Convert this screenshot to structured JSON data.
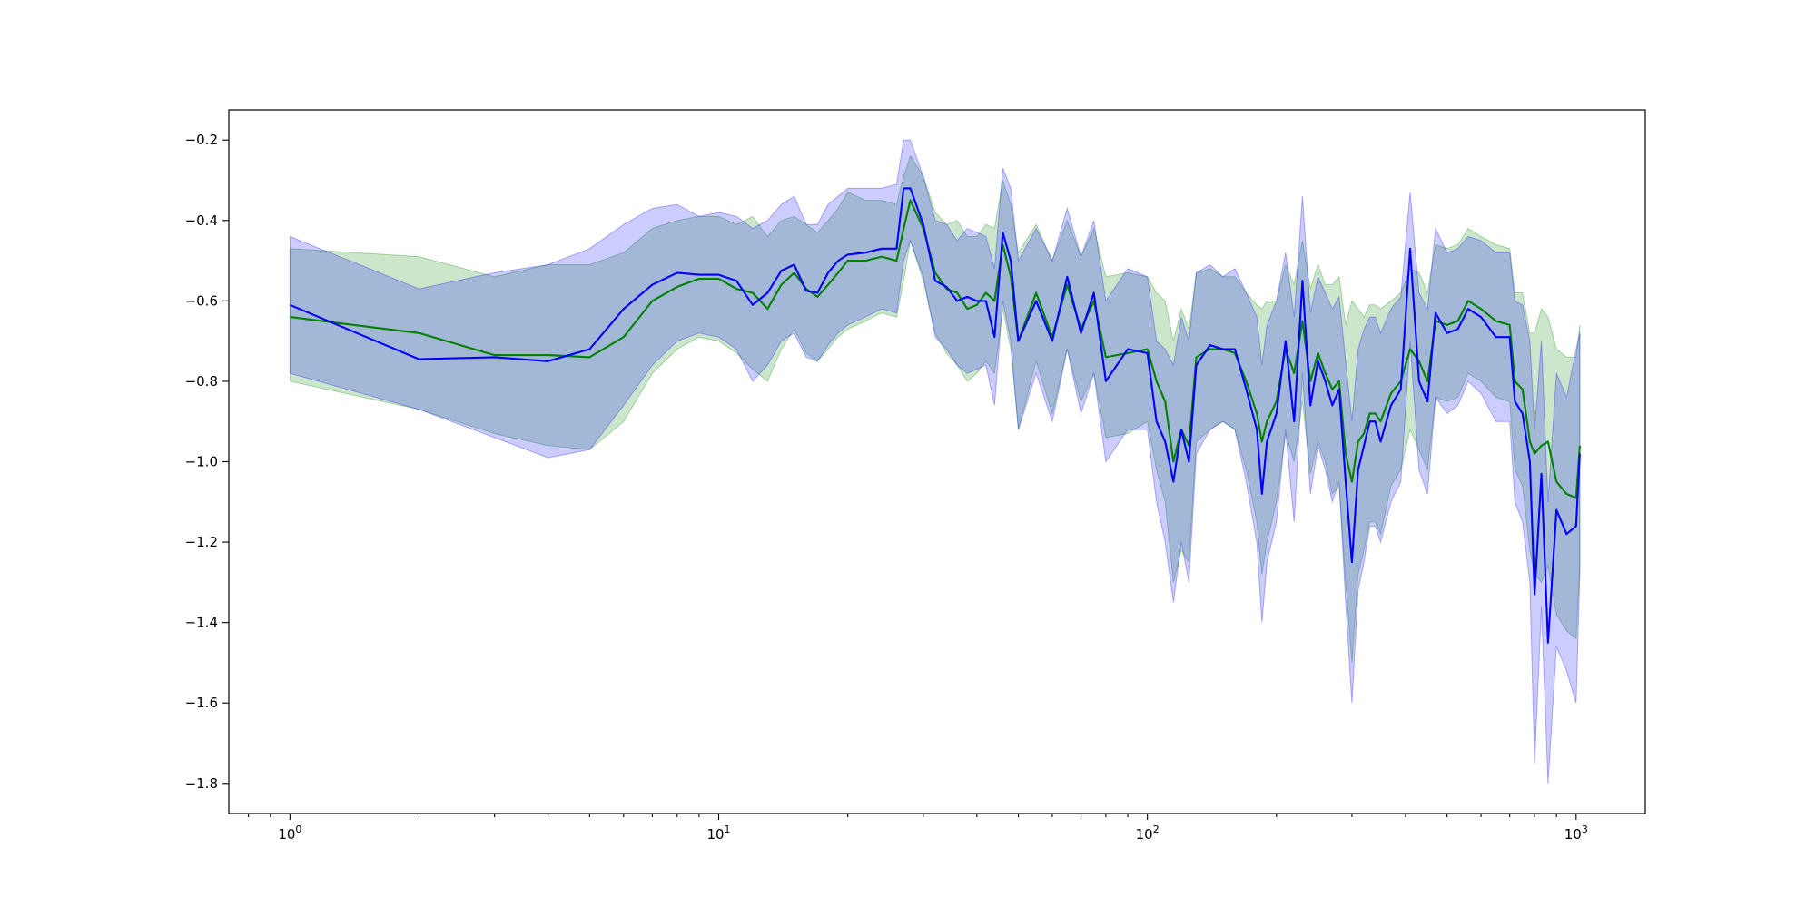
{
  "chart_data": {
    "type": "line",
    "title": "",
    "xlabel": "",
    "ylabel": "",
    "xscale": "log",
    "xlim": [
      0.72,
      1450
    ],
    "ylim": [
      -1.875,
      -0.125
    ],
    "grid": false,
    "legend": "none",
    "x_ticks": [
      1,
      10,
      100,
      1000
    ],
    "x_tick_labels": [
      {
        "base": "10",
        "exp": "0"
      },
      {
        "base": "10",
        "exp": "1"
      },
      {
        "base": "10",
        "exp": "2"
      },
      {
        "base": "10",
        "exp": "3"
      }
    ],
    "y_ticks": [
      -0.2,
      -0.4,
      -0.6,
      -0.8,
      -1.0,
      -1.2,
      -1.4,
      -1.6,
      -1.8
    ],
    "y_tick_labels": [
      "−0.2",
      "−0.4",
      "−0.6",
      "−0.8",
      "−1.0",
      "−1.2",
      "−1.4",
      "−1.6",
      "−1.8"
    ],
    "series": [
      {
        "color": "#008000",
        "band_color": "#008000",
        "band_opacity": 0.2,
        "x": [
          1,
          2,
          3,
          4,
          5,
          6,
          7,
          8,
          9,
          10,
          11,
          12,
          13,
          14,
          15,
          16,
          17,
          18,
          19,
          20,
          22,
          24,
          26,
          27,
          28,
          30,
          32,
          34,
          36,
          38,
          40,
          42,
          44,
          46,
          48,
          50,
          55,
          60,
          65,
          70,
          75,
          80,
          90,
          100,
          105,
          110,
          115,
          120,
          125,
          130,
          140,
          150,
          160,
          170,
          180,
          185,
          190,
          200,
          210,
          220,
          230,
          240,
          250,
          260,
          270,
          280,
          290,
          300,
          310,
          320,
          330,
          340,
          350,
          370,
          390,
          410,
          430,
          450,
          470,
          500,
          530,
          560,
          600,
          650,
          700,
          720,
          750,
          780,
          800,
          830,
          860,
          900,
          950,
          1000,
          1020
        ],
        "y": [
          -0.64,
          -0.68,
          -0.735,
          -0.735,
          -0.74,
          -0.69,
          -0.6,
          -0.565,
          -0.545,
          -0.545,
          -0.57,
          -0.58,
          -0.62,
          -0.56,
          -0.53,
          -0.57,
          -0.59,
          -0.56,
          -0.53,
          -0.5,
          -0.5,
          -0.49,
          -0.5,
          -0.42,
          -0.35,
          -0.42,
          -0.53,
          -0.57,
          -0.58,
          -0.62,
          -0.61,
          -0.58,
          -0.6,
          -0.46,
          -0.54,
          -0.7,
          -0.58,
          -0.69,
          -0.56,
          -0.67,
          -0.6,
          -0.74,
          -0.73,
          -0.72,
          -0.8,
          -0.85,
          -1.0,
          -0.92,
          -0.96,
          -0.74,
          -0.72,
          -0.72,
          -0.73,
          -0.8,
          -0.88,
          -0.95,
          -0.9,
          -0.85,
          -0.72,
          -0.78,
          -0.65,
          -0.8,
          -0.73,
          -0.78,
          -0.82,
          -0.8,
          -0.98,
          -1.05,
          -0.95,
          -0.93,
          -0.88,
          -0.88,
          -0.9,
          -0.83,
          -0.8,
          -0.72,
          -0.75,
          -0.8,
          -0.65,
          -0.66,
          -0.65,
          -0.6,
          -0.62,
          -0.65,
          -0.66,
          -0.8,
          -0.82,
          -0.95,
          -0.98,
          -0.96,
          -0.95,
          -1.05,
          -1.08,
          -1.09,
          -0.96
        ],
        "lower": [
          -0.8,
          -0.87,
          -0.93,
          -0.96,
          -0.97,
          -0.9,
          -0.78,
          -0.72,
          -0.69,
          -0.7,
          -0.73,
          -0.77,
          -0.8,
          -0.72,
          -0.67,
          -0.73,
          -0.75,
          -0.72,
          -0.69,
          -0.67,
          -0.65,
          -0.63,
          -0.64,
          -0.55,
          -0.45,
          -0.55,
          -0.68,
          -0.73,
          -0.76,
          -0.8,
          -0.78,
          -0.75,
          -0.78,
          -0.62,
          -0.72,
          -0.92,
          -0.75,
          -0.88,
          -0.72,
          -0.85,
          -0.78,
          -0.94,
          -0.93,
          -0.9,
          -1.02,
          -1.1,
          -1.3,
          -1.22,
          -1.25,
          -0.95,
          -0.92,
          -0.9,
          -0.92,
          -1.02,
          -1.15,
          -1.28,
          -1.2,
          -1.1,
          -0.93,
          -1.0,
          -0.85,
          -1.03,
          -0.95,
          -1.0,
          -1.08,
          -1.06,
          -1.3,
          -1.5,
          -1.28,
          -1.22,
          -1.15,
          -1.15,
          -1.18,
          -1.06,
          -1.02,
          -0.92,
          -0.97,
          -1.02,
          -0.84,
          -0.85,
          -0.84,
          -0.78,
          -0.8,
          -0.84,
          -0.85,
          -1.02,
          -1.06,
          -1.22,
          -1.28,
          -1.3,
          -1.26,
          -1.38,
          -1.42,
          -1.44,
          -1.26
        ],
        "upper": [
          -0.47,
          -0.49,
          -0.54,
          -0.51,
          -0.51,
          -0.48,
          -0.42,
          -0.4,
          -0.39,
          -0.39,
          -0.41,
          -0.39,
          -0.44,
          -0.4,
          -0.39,
          -0.41,
          -0.43,
          -0.4,
          -0.37,
          -0.33,
          -0.35,
          -0.35,
          -0.36,
          -0.29,
          -0.24,
          -0.29,
          -0.38,
          -0.41,
          -0.4,
          -0.44,
          -0.44,
          -0.41,
          -0.42,
          -0.3,
          -0.36,
          -0.48,
          -0.41,
          -0.5,
          -0.4,
          -0.49,
          -0.42,
          -0.54,
          -0.53,
          -0.54,
          -0.58,
          -0.6,
          -0.7,
          -0.62,
          -0.67,
          -0.53,
          -0.52,
          -0.54,
          -0.54,
          -0.58,
          -0.61,
          -0.62,
          -0.6,
          -0.6,
          -0.51,
          -0.56,
          -0.45,
          -0.57,
          -0.51,
          -0.56,
          -0.56,
          -0.54,
          -0.66,
          -0.6,
          -0.62,
          -0.64,
          -0.61,
          -0.61,
          -0.62,
          -0.6,
          -0.58,
          -0.52,
          -0.53,
          -0.58,
          -0.46,
          -0.47,
          -0.46,
          -0.42,
          -0.44,
          -0.46,
          -0.47,
          -0.58,
          -0.58,
          -0.68,
          -0.68,
          -0.62,
          -0.64,
          -0.72,
          -0.74,
          -0.74,
          -0.66
        ]
      },
      {
        "color": "#0000ff",
        "band_color": "#0000ff",
        "band_opacity": 0.2,
        "x": [
          1,
          2,
          3,
          4,
          5,
          6,
          7,
          8,
          9,
          10,
          11,
          12,
          13,
          14,
          15,
          16,
          17,
          18,
          19,
          20,
          22,
          24,
          26,
          27,
          28,
          30,
          32,
          34,
          36,
          38,
          40,
          42,
          44,
          46,
          48,
          50,
          55,
          60,
          65,
          70,
          75,
          80,
          90,
          100,
          105,
          110,
          115,
          120,
          125,
          130,
          140,
          150,
          160,
          170,
          180,
          185,
          190,
          200,
          210,
          220,
          230,
          240,
          250,
          260,
          270,
          280,
          290,
          300,
          310,
          320,
          330,
          340,
          350,
          370,
          390,
          410,
          430,
          450,
          470,
          500,
          530,
          560,
          600,
          650,
          700,
          720,
          750,
          780,
          800,
          830,
          860,
          900,
          950,
          1000,
          1020
        ],
        "y": [
          -0.61,
          -0.745,
          -0.74,
          -0.75,
          -0.72,
          -0.62,
          -0.56,
          -0.53,
          -0.535,
          -0.535,
          -0.55,
          -0.61,
          -0.58,
          -0.525,
          -0.51,
          -0.575,
          -0.58,
          -0.53,
          -0.5,
          -0.485,
          -0.48,
          -0.47,
          -0.47,
          -0.32,
          -0.32,
          -0.41,
          -0.55,
          -0.565,
          -0.6,
          -0.59,
          -0.6,
          -0.6,
          -0.69,
          -0.43,
          -0.5,
          -0.7,
          -0.6,
          -0.7,
          -0.54,
          -0.68,
          -0.58,
          -0.8,
          -0.72,
          -0.73,
          -0.9,
          -0.95,
          -1.05,
          -0.92,
          -1.0,
          -0.76,
          -0.71,
          -0.72,
          -0.72,
          -0.82,
          -0.92,
          -1.08,
          -0.95,
          -0.88,
          -0.7,
          -0.9,
          -0.55,
          -0.86,
          -0.75,
          -0.8,
          -0.86,
          -0.82,
          -1.05,
          -1.25,
          -1.02,
          -0.96,
          -0.9,
          -0.9,
          -0.95,
          -0.86,
          -0.82,
          -0.47,
          -0.8,
          -0.85,
          -0.63,
          -0.68,
          -0.67,
          -0.62,
          -0.64,
          -0.69,
          -0.69,
          -0.85,
          -0.88,
          -1.0,
          -1.33,
          -1.03,
          -1.45,
          -1.12,
          -1.18,
          -1.16,
          -0.98
        ],
        "lower": [
          -0.78,
          -0.87,
          -0.94,
          -0.99,
          -0.97,
          -0.86,
          -0.76,
          -0.7,
          -0.68,
          -0.69,
          -0.72,
          -0.8,
          -0.76,
          -0.7,
          -0.68,
          -0.74,
          -0.75,
          -0.71,
          -0.68,
          -0.66,
          -0.64,
          -0.62,
          -0.63,
          -0.5,
          -0.45,
          -0.54,
          -0.69,
          -0.72,
          -0.76,
          -0.78,
          -0.77,
          -0.76,
          -0.86,
          -0.6,
          -0.7,
          -0.92,
          -0.78,
          -0.9,
          -0.72,
          -0.88,
          -0.78,
          -1.0,
          -0.92,
          -0.92,
          -1.1,
          -1.2,
          -1.35,
          -1.2,
          -1.3,
          -0.98,
          -0.92,
          -0.9,
          -0.92,
          -1.05,
          -1.2,
          -1.4,
          -1.25,
          -1.15,
          -0.92,
          -1.15,
          -0.78,
          -1.08,
          -0.96,
          -1.02,
          -1.1,
          -1.05,
          -1.35,
          -1.6,
          -1.32,
          -1.25,
          -1.16,
          -1.16,
          -1.2,
          -1.1,
          -1.05,
          -0.7,
          -1.02,
          -1.08,
          -0.84,
          -0.88,
          -0.86,
          -0.8,
          -0.83,
          -0.9,
          -0.9,
          -1.1,
          -1.15,
          -1.3,
          -1.75,
          -1.36,
          -1.8,
          -1.46,
          -1.52,
          -1.6,
          -1.28
        ],
        "upper": [
          -0.44,
          -0.57,
          -0.53,
          -0.51,
          -0.47,
          -0.41,
          -0.37,
          -0.36,
          -0.39,
          -0.38,
          -0.39,
          -0.42,
          -0.4,
          -0.36,
          -0.34,
          -0.41,
          -0.41,
          -0.36,
          -0.34,
          -0.32,
          -0.32,
          -0.32,
          -0.31,
          -0.2,
          -0.2,
          -0.29,
          -0.4,
          -0.41,
          -0.45,
          -0.42,
          -0.43,
          -0.44,
          -0.52,
          -0.27,
          -0.32,
          -0.5,
          -0.42,
          -0.5,
          -0.37,
          -0.49,
          -0.4,
          -0.6,
          -0.52,
          -0.54,
          -0.7,
          -0.72,
          -0.76,
          -0.64,
          -0.7,
          -0.53,
          -0.51,
          -0.54,
          -0.52,
          -0.58,
          -0.64,
          -0.76,
          -0.66,
          -0.6,
          -0.48,
          -0.64,
          -0.34,
          -0.63,
          -0.54,
          -0.58,
          -0.62,
          -0.59,
          -0.75,
          -0.9,
          -0.72,
          -0.67,
          -0.64,
          -0.64,
          -0.68,
          -0.62,
          -0.59,
          -0.33,
          -0.58,
          -0.62,
          -0.42,
          -0.48,
          -0.47,
          -0.44,
          -0.45,
          -0.48,
          -0.48,
          -0.6,
          -0.61,
          -0.7,
          -0.92,
          -0.7,
          -1.1,
          -0.78,
          -0.84,
          -0.72,
          -0.68
        ]
      }
    ]
  }
}
